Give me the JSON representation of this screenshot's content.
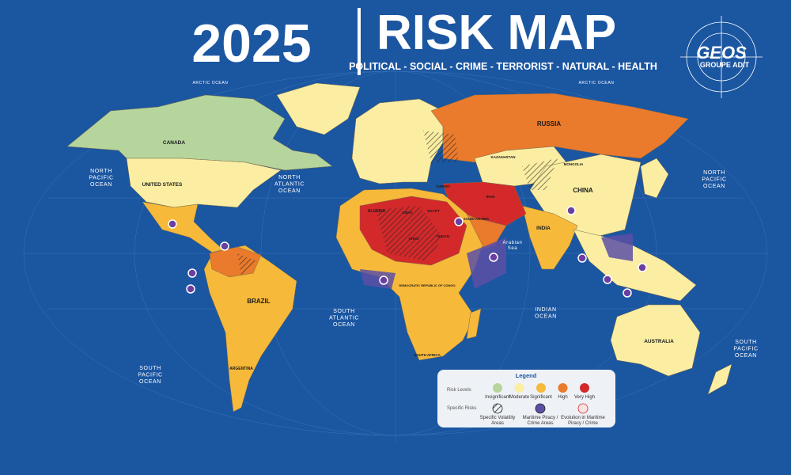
{
  "header": {
    "year": "2025",
    "title": "RISK MAP",
    "subtitle": "POLITICAL - SOCIAL - CRIME - TERRORIST - NATURAL - HEALTH"
  },
  "logo": {
    "name": "GEOS",
    "sub": "GROUPE ADIT"
  },
  "oceans": [
    {
      "lines": [
        "NORTH",
        "PACIFIC",
        "OCEAN"
      ]
    },
    {
      "lines": [
        "NORTH",
        "ATLANTIC",
        "OCEAN"
      ]
    },
    {
      "lines": [
        "NORTH",
        "PACIFIC",
        "OCEAN"
      ]
    },
    {
      "lines": [
        "SOUTH",
        "ATLANTIC",
        "OCEAN"
      ]
    },
    {
      "lines": [
        "INDIAN",
        "OCEAN"
      ]
    },
    {
      "lines": [
        "SOUTH",
        "PACIFIC",
        "OCEAN"
      ]
    },
    {
      "lines": [
        "SOUTH",
        "PACIFIC",
        "OCEAN"
      ]
    },
    {
      "lines": [
        "ARCTIC OCEAN"
      ]
    },
    {
      "lines": [
        "ARCTIC OCEAN"
      ]
    },
    {
      "lines": [
        "Arabian",
        "Sea"
      ]
    }
  ],
  "countries": [
    "CANADA",
    "UNITED STATES",
    "RUSSIA",
    "CHINA",
    "BRAZIL",
    "AUSTRALIA",
    "INDIA",
    "ALGERIA",
    "ARGENTINA",
    "KAZAKHSTAN",
    "MONGOLIA",
    "SAUDI ARABIA",
    "IRAN",
    "EGYPT",
    "LIBYA",
    "CHAD",
    "SUDAN",
    "DEMOCRATIC REPUBLIC OF CONGO",
    "SOUTH AFRICA",
    "TURKEY"
  ],
  "legend": {
    "title": "Legend",
    "risk_levels": {
      "label": "Risk Levels",
      "items": [
        {
          "label": "Insignificant",
          "color": "#b6d59c"
        },
        {
          "label": "Moderate",
          "color": "#fbeea2"
        },
        {
          "label": "Significant",
          "color": "#f6b93a"
        },
        {
          "label": "High",
          "color": "#ea7a2c"
        },
        {
          "label": "Very High",
          "color": "#d3292b"
        }
      ]
    },
    "specific_risks": {
      "label": "Specific Risks",
      "items": [
        [
          "Specific Volatility",
          "Areas"
        ],
        [
          "Maritime Piracy /",
          "Crime Areas"
        ],
        [
          "Evolution in Maritime",
          "Piracy / Crime"
        ]
      ]
    }
  }
}
